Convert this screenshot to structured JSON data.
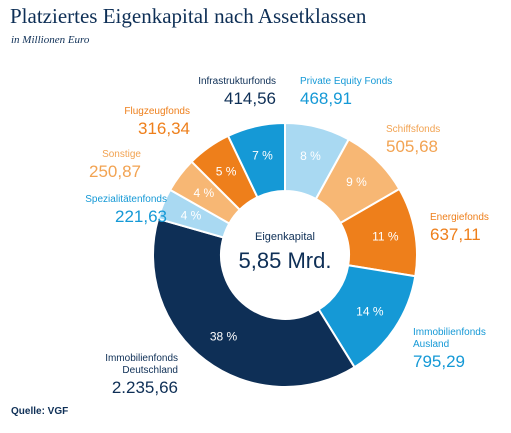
{
  "chart_data": {
    "type": "donut",
    "title": "Platziertes Eigenkapital nach Assetklassen",
    "subtitle": "in Millionen Euro",
    "source": "Quelle: VGF",
    "center_label": "Eigenkapital",
    "center_value_label": "5,85 Mrd.",
    "categories": [
      "Private Equity Fonds",
      "Schiffsfonds",
      "Energiefonds",
      "Immobilienfonds Ausland",
      "Immobilienfonds Deutschland",
      "Spezialitätenfonds",
      "Sonstige",
      "Flugzeugfonds",
      "Infrastrukturfonds"
    ],
    "values": [
      468.91,
      505.68,
      637.11,
      795.29,
      2235.66,
      221.63,
      250.87,
      316.34,
      414.56
    ],
    "value_labels": [
      "468,91",
      "505,68",
      "637,11",
      "795,29",
      "2.235,66",
      "221,63",
      "250,87",
      "316,34",
      "414,56"
    ],
    "share_labels": [
      "8 %",
      "9 %",
      "11 %",
      "14 %",
      "38 %",
      "4 %",
      "4 %",
      "5 %",
      "7 %"
    ],
    "colors": [
      "#a9d9f2",
      "#f7b774",
      "#ee7f1b",
      "#1599d6",
      "#0e2f56",
      "#a9d9f2",
      "#f7b774",
      "#ee7f1b",
      "#1599d6"
    ],
    "label_colors": [
      "#1599d6",
      "#f2a352",
      "#ee7f1b",
      "#1599d6",
      "#0e2f56",
      "#1599d6",
      "#f2a352",
      "#ee7f1b",
      "#0e2f56"
    ]
  }
}
